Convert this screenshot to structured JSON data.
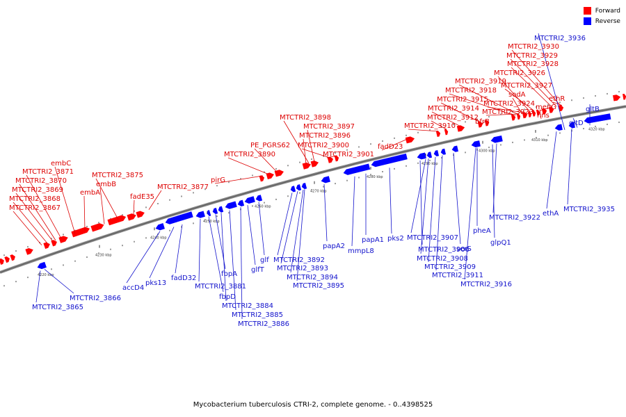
{
  "legend": {
    "forward_label": "Forward",
    "reverse_label": "Reverse",
    "forward_color": "#ff0000",
    "reverse_color": "#0000ff"
  },
  "caption": "Mycobacterium tuberculosis CTRI-2, complete genome. - 0..4398525",
  "axis": {
    "unit": "kbp",
    "ticks": [
      "4220 kbp",
      "4230 kbp",
      "4240 kbp",
      "4250 kbp",
      "4260 kbp",
      "4270 kbp",
      "4280 kbp",
      "4290 kbp",
      "4300 kbp",
      "4310 kbp",
      "4320 kbp"
    ]
  },
  "forward_labels": [
    "MTCTRI2_3867",
    "MTCTRI2_3868",
    "MTCTRI2_3869",
    "MTCTRI2_3870",
    "MTCTRI2_3871",
    "embC",
    "embA",
    "embB",
    "MTCTRI2_3875",
    "fadE35",
    "MTCTRI2_3877",
    "pirG",
    "MTCTRI2_3890",
    "PE_PGRS62",
    "MTCTRI2_3896",
    "MTCTRI2_3897",
    "MTCTRI2_3898",
    "MTCTRI2_3900",
    "MTCTRI2_3901",
    "fadD23",
    "MTCTRI2_3910",
    "MTCTRI2_3912",
    "MTCTRI2_3914",
    "MTCTRI2_3915",
    "bfrB",
    "MTCTRI2_3918",
    "MTCTRI2_3919",
    "MTCTRI2_3923",
    "MTCTRI2_3924",
    "sodA",
    "MTCTRI2_3926",
    "MTCTRI2_3927",
    "hns",
    "menG",
    "MTCTRI2_3928",
    "MTCTRI2_3929",
    "MTCTRI2_3930",
    "ethR"
  ],
  "reverse_labels": [
    "MTCTRI2_3865",
    "MTCTRI2_3866",
    "accD4",
    "pks13",
    "fadD32",
    "MTCTRI2_3881",
    "fbpD",
    "fbpA",
    "MTCTRI2_3884",
    "MTCTRI2_3885",
    "MTCTRI2_3886",
    "glfT",
    "glf",
    "MTCTRI2_3892",
    "MTCTRI2_3893",
    "MTCTRI2_3894",
    "MTCTRI2_3895",
    "papA2",
    "mmpL8",
    "papA1",
    "pks2",
    "MTCTRI2_3906",
    "MTCTRI2_3907",
    "MTCTRI2_3908",
    "MTCTRI2_3909",
    "MTCTRI2_3911",
    "serS",
    "MTCTRI2_3916",
    "pheA",
    "glpQ1",
    "MTCTRI2_3922",
    "ethA",
    "MTCTRI2_3935",
    "gltD",
    "gltB",
    "MTCTRI2_3936"
  ]
}
